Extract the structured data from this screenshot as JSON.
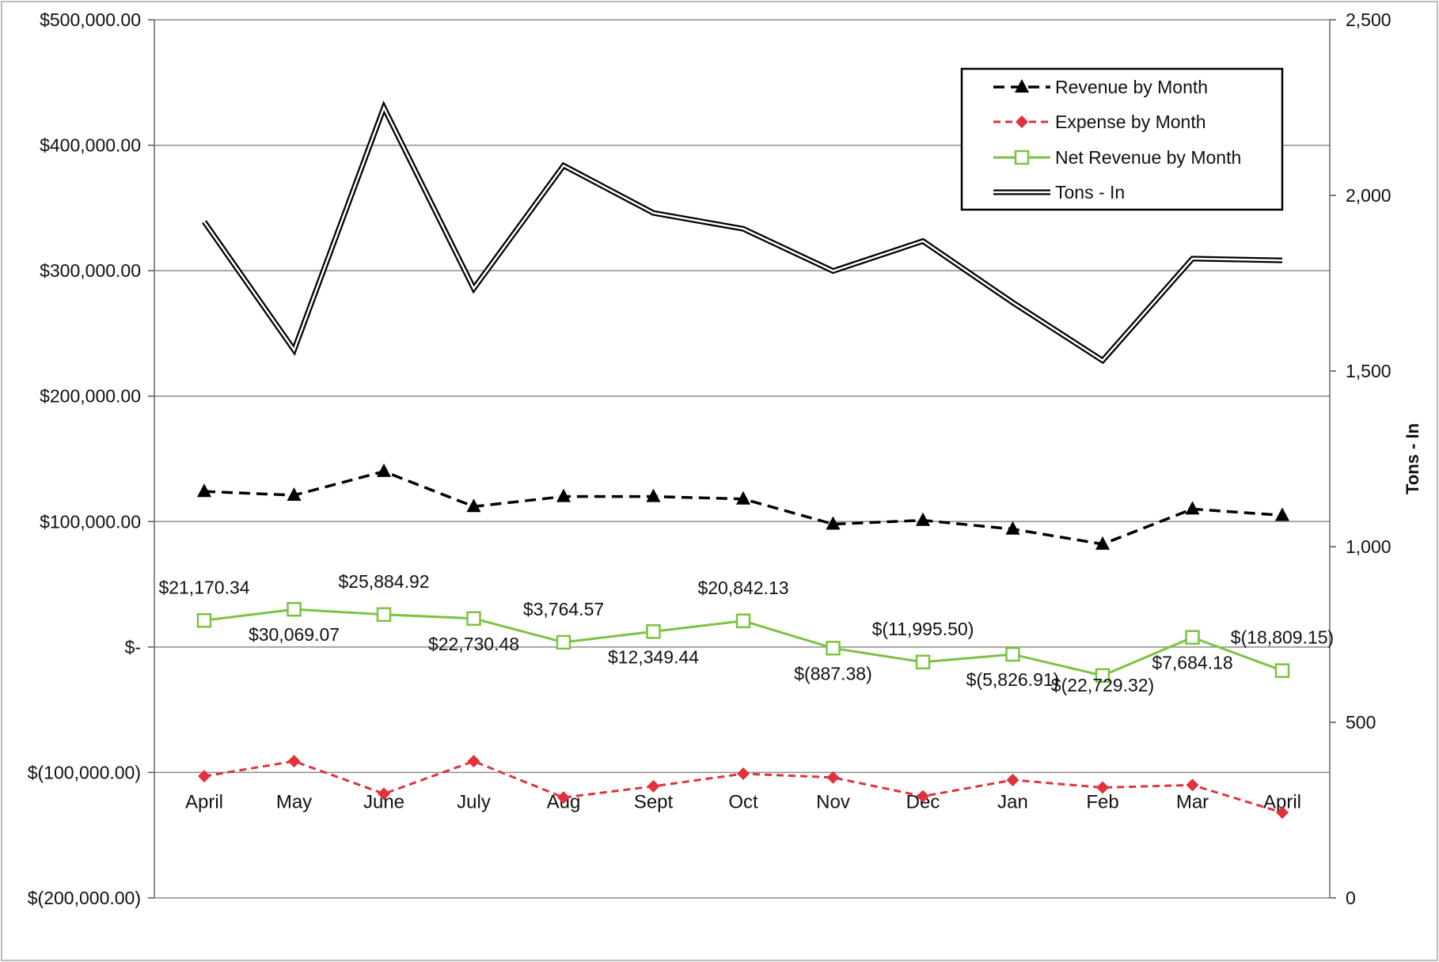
{
  "chart_data": {
    "type": "line",
    "categories": [
      "April",
      "May",
      "June",
      "July",
      "Aug",
      "Sept",
      "Oct",
      "Nov",
      "Dec",
      "Jan",
      "Feb",
      "Mar",
      "April"
    ],
    "series": [
      {
        "name": "Revenue by Month",
        "axis": "left",
        "color": "#000000",
        "values": [
          124000,
          121000,
          140000,
          112000,
          120000,
          120000,
          118000,
          98000,
          101000,
          94000,
          82000,
          110000,
          105000
        ]
      },
      {
        "name": "Expense by Month",
        "axis": "left",
        "color": "#e0323c",
        "values": [
          -103000,
          -91000,
          -117000,
          -91000,
          -120000,
          -111000,
          -101000,
          -104000,
          -119000,
          -106000,
          -112000,
          -110000,
          -132000
        ]
      },
      {
        "name": "Net Revenue by Month",
        "axis": "left",
        "color": "#7cc242",
        "values": [
          21170.34,
          30069.07,
          25884.92,
          22730.48,
          3764.57,
          12349.44,
          20842.13,
          -887.38,
          -11995.5,
          -5826.91,
          -22729.32,
          7684.18,
          -18809.15
        ],
        "data_labels": [
          "$21,170.34",
          "$30,069.07",
          "$25,884.92",
          "$22,730.48",
          "$3,764.57",
          "$12,349.44",
          "$20,842.13",
          "$(887.38)",
          "$(11,995.50)",
          "$(5,826.91)",
          "$(22,729.32)",
          "$7,684.18",
          "$(18,809.15)"
        ]
      },
      {
        "name": "Tons - In",
        "axis": "right",
        "color": "#000000",
        "values": [
          1925,
          1560,
          2250,
          1735,
          2085,
          1950,
          1905,
          1785,
          1870,
          1695,
          1530,
          1820,
          1815
        ]
      }
    ],
    "left_axis": {
      "ylim": [
        -200000,
        500000
      ],
      "ticks": [
        500000,
        400000,
        300000,
        200000,
        100000,
        0,
        -100000,
        -200000
      ],
      "tick_labels": [
        "$500,000.00",
        "$400,000.00",
        "$300,000.00",
        "$200,000.00",
        "$100,000.00",
        "$-",
        "$(100,000.00)",
        "$(200,000.00)"
      ]
    },
    "right_axis": {
      "ylim": [
        0,
        2500
      ],
      "ticks": [
        2500,
        2000,
        1500,
        1000,
        500,
        0
      ],
      "tick_labels": [
        "2,500",
        "2,000",
        "1,500",
        "1,000",
        "500",
        "0"
      ],
      "label": "Tons - In"
    },
    "legend": {
      "placement": "top-right",
      "entries": [
        "Revenue by Month",
        "Expense by Month",
        "Net Revenue by Month",
        "Tons - In"
      ]
    },
    "grid": true
  }
}
